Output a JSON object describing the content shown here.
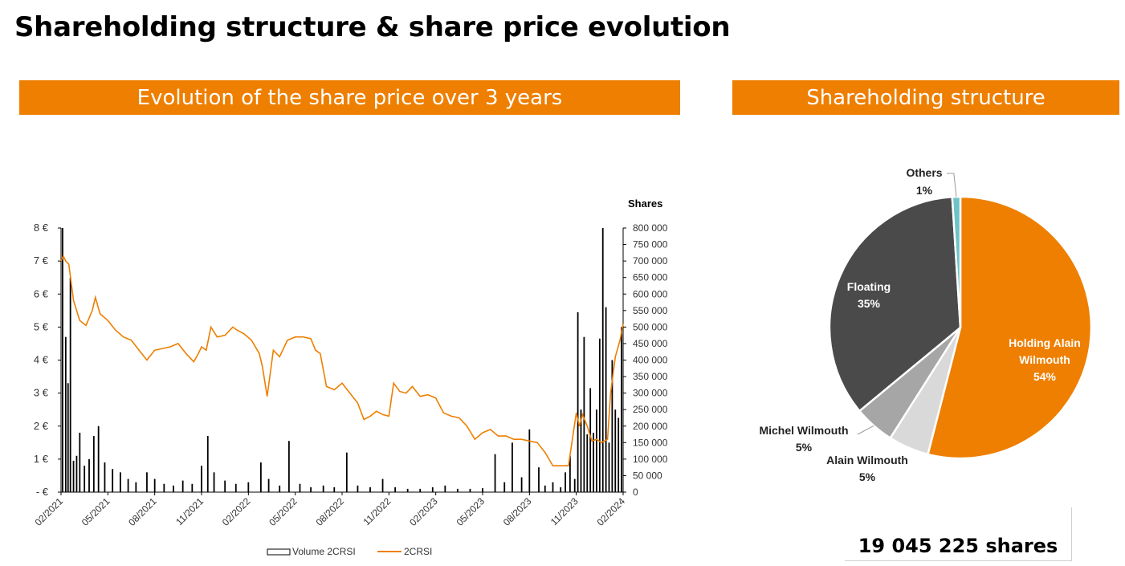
{
  "title": "Shareholding structure & share price evolution",
  "colors": {
    "orange": "#EE7F00",
    "dark_gray": "#4A4A4A",
    "mid_gray": "#A6A6A6",
    "light_gray": "#D9D9D9",
    "teal": "#6EC3C8"
  },
  "left_panel": {
    "header": "Evolution of the share price over 3 years"
  },
  "right_panel": {
    "header": "Shareholding structure"
  },
  "total_shares_label": "19 045 225 shares",
  "chart_data": [
    {
      "type": "line",
      "title": "Evolution of the share price over 3 years",
      "y_left": {
        "range": [
          0,
          8
        ],
        "ticks": [
          0,
          1,
          2,
          3,
          4,
          5,
          6,
          7,
          8
        ],
        "tick_labels": [
          "- €",
          "1 €",
          "2 €",
          "3 €",
          "4 €",
          "5 €",
          "6 €",
          "7 €",
          "8 €"
        ]
      },
      "y_right": {
        "label": "Shares",
        "range": [
          0,
          800000
        ],
        "ticks": [
          0,
          50000,
          100000,
          150000,
          200000,
          250000,
          300000,
          350000,
          400000,
          450000,
          500000,
          550000,
          600000,
          650000,
          700000,
          750000,
          800000
        ],
        "tick_labels": [
          "0",
          "50 000",
          "100 000",
          "150 000",
          "200 000",
          "250 000",
          "300 000",
          "350 000",
          "400 000",
          "450 000",
          "500 000",
          "550 000",
          "600 000",
          "650 000",
          "700 000",
          "750 000",
          "800 000"
        ]
      },
      "x_range": [
        0,
        36
      ],
      "x_ticks": [
        0,
        3,
        6,
        9,
        12,
        15,
        18,
        21,
        24,
        27,
        30,
        33,
        36
      ],
      "x_tick_labels": [
        "02/2021",
        "05/2021",
        "08/2021",
        "11/2021",
        "02/2022",
        "05/2022",
        "08/2022",
        "11/2022",
        "02/2023",
        "05/2023",
        "08/2023",
        "11/2023",
        "02/2024"
      ],
      "legend": [
        "Volume 2CRSI",
        "2CRSI"
      ],
      "price_series": {
        "name": "2CRSI",
        "x": [
          0,
          0.15,
          0.3,
          0.5,
          0.8,
          1.2,
          1.6,
          2.0,
          2.2,
          2.5,
          3.0,
          3.5,
          4.0,
          4.5,
          5.0,
          5.5,
          6.0,
          6.5,
          7.0,
          7.5,
          8.0,
          8.5,
          8.8,
          9.0,
          9.3,
          9.6,
          10.0,
          10.5,
          11.0,
          11.3,
          11.7,
          12.2,
          12.7,
          12.9,
          13.2,
          13.6,
          14.0,
          14.5,
          15.0,
          15.5,
          16.0,
          16.3,
          16.6,
          17.0,
          17.5,
          18.0,
          18.5,
          19.0,
          19.4,
          19.8,
          20.2,
          20.6,
          21.0,
          21.3,
          21.7,
          22.1,
          22.5,
          23.0,
          23.5,
          24.0,
          24.5,
          25.0,
          25.5,
          26.0,
          26.5,
          27.0,
          27.5,
          28.0,
          28.5,
          29.0,
          29.5,
          30.0,
          30.5,
          31.0,
          31.5,
          32.0,
          32.5,
          33.0,
          33.2,
          33.4,
          33.7,
          34.0,
          34.3,
          34.6,
          35.0,
          35.2,
          35.5,
          35.8,
          36.0
        ],
        "y": [
          7.0,
          7.15,
          7.0,
          6.9,
          5.8,
          5.2,
          5.05,
          5.5,
          5.9,
          5.4,
          5.2,
          4.9,
          4.7,
          4.6,
          4.3,
          4.0,
          4.3,
          4.35,
          4.4,
          4.5,
          4.2,
          3.95,
          4.2,
          4.4,
          4.3,
          5.0,
          4.7,
          4.75,
          5.0,
          4.9,
          4.8,
          4.6,
          4.2,
          3.8,
          2.9,
          4.3,
          4.1,
          4.6,
          4.7,
          4.7,
          4.65,
          4.3,
          4.2,
          3.2,
          3.1,
          3.3,
          3.0,
          2.7,
          2.2,
          2.3,
          2.45,
          2.35,
          2.3,
          3.3,
          3.05,
          3.0,
          3.2,
          2.9,
          2.95,
          2.85,
          2.4,
          2.3,
          2.25,
          2.0,
          1.6,
          1.8,
          1.9,
          1.7,
          1.7,
          1.6,
          1.6,
          1.55,
          1.5,
          1.2,
          0.8,
          0.8,
          0.8,
          2.4,
          2.0,
          2.35,
          2.0,
          1.55,
          1.6,
          1.5,
          1.6,
          3.0,
          4.1,
          4.6,
          5.1
        ]
      },
      "volume_series": {
        "name": "Volume 2CRSI",
        "x": [
          0.1,
          0.3,
          0.45,
          0.6,
          0.8,
          1.0,
          1.2,
          1.5,
          1.8,
          2.1,
          2.4,
          2.8,
          3.3,
          3.8,
          4.3,
          4.8,
          5.5,
          6.0,
          6.6,
          7.2,
          7.8,
          8.4,
          9.0,
          9.4,
          9.8,
          10.5,
          11.2,
          12.0,
          12.8,
          13.3,
          14.0,
          14.6,
          15.3,
          16.0,
          16.8,
          17.5,
          18.3,
          19.0,
          19.8,
          20.6,
          21.4,
          22.2,
          23.0,
          23.8,
          24.6,
          25.4,
          26.2,
          27.0,
          27.8,
          28.4,
          28.9,
          29.5,
          30.0,
          30.6,
          31.0,
          31.5,
          32.0,
          32.3,
          32.6,
          32.9,
          33.1,
          33.3,
          33.5,
          33.7,
          33.9,
          34.1,
          34.3,
          34.5,
          34.7,
          34.9,
          35.1,
          35.3,
          35.5,
          35.7,
          35.9
        ],
        "y": [
          800000,
          470000,
          330000,
          650000,
          95000,
          110000,
          180000,
          80000,
          100000,
          170000,
          200000,
          90000,
          70000,
          60000,
          40000,
          30000,
          60000,
          40000,
          25000,
          20000,
          35000,
          25000,
          80000,
          170000,
          60000,
          35000,
          25000,
          30000,
          90000,
          40000,
          20000,
          155000,
          25000,
          15000,
          20000,
          15000,
          120000,
          20000,
          15000,
          40000,
          15000,
          10000,
          10000,
          15000,
          20000,
          10000,
          10000,
          12000,
          115000,
          30000,
          150000,
          45000,
          190000,
          75000,
          20000,
          30000,
          15000,
          60000,
          110000,
          40000,
          545000,
          250000,
          470000,
          175000,
          315000,
          180000,
          250000,
          465000,
          800000,
          560000,
          150000,
          400000,
          250000,
          225000,
          500000
        ]
      }
    },
    {
      "type": "pie",
      "title": "Shareholding structure",
      "slices": [
        {
          "label": "Holding Alain Wilmouth",
          "value": 54,
          "display": "54%"
        },
        {
          "label": "Alain Wilmouth",
          "value": 5,
          "display": "5%"
        },
        {
          "label": "Michel Wilmouth",
          "value": 5,
          "display": "5%"
        },
        {
          "label": "Floating",
          "value": 35,
          "display": "35%"
        },
        {
          "label": "Others",
          "value": 1,
          "display": "1%"
        }
      ]
    }
  ]
}
